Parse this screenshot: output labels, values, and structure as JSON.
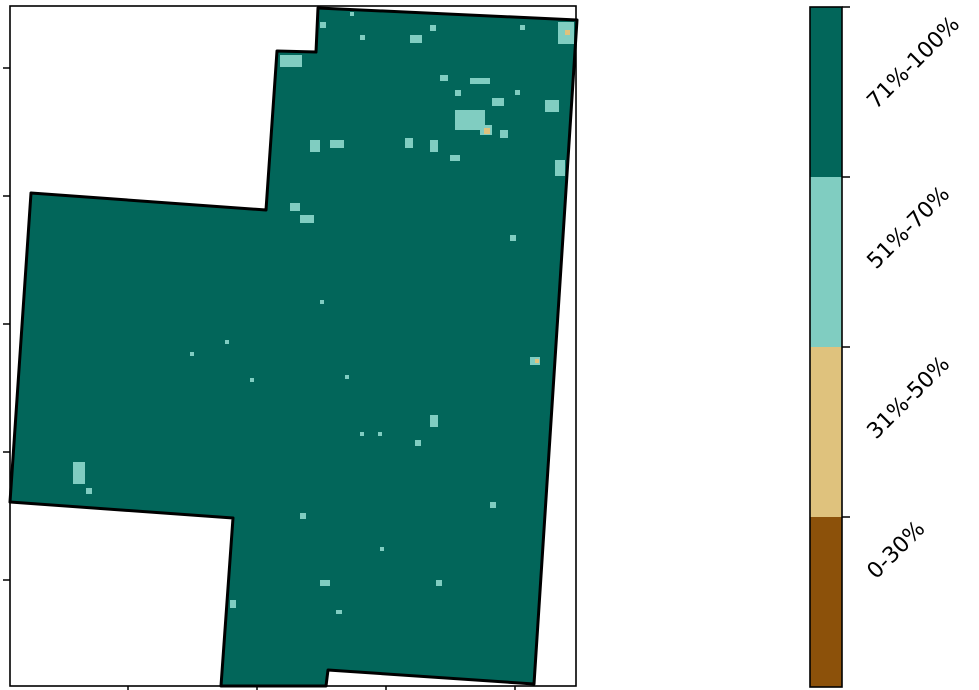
{
  "map": {
    "region_fill": "#02665a",
    "outline_color": "#000000",
    "background": "#ffffff",
    "speckle_colors": [
      "#80cdc1",
      "#dfc27d"
    ]
  },
  "legend": {
    "classes": [
      {
        "label": "0-30%",
        "color": "#8c510a"
      },
      {
        "label": "31%-50%",
        "color": "#dfc27d"
      },
      {
        "label": "51%-70%",
        "color": "#80cdc1"
      },
      {
        "label": "71%-100%",
        "color": "#02665a"
      }
    ]
  }
}
